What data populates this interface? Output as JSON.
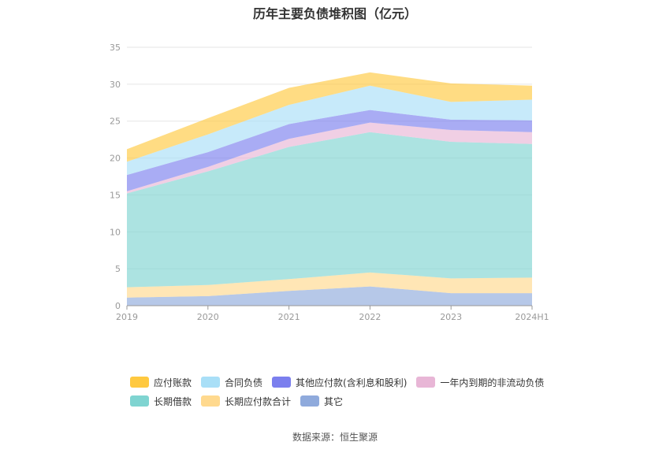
{
  "chart_data": {
    "type": "area",
    "stacked": true,
    "title": "历年主要负债堆积图（亿元）",
    "categories": [
      "2019",
      "2020",
      "2021",
      "2022",
      "2023",
      "2024H1"
    ],
    "ylim": [
      0,
      35
    ],
    "yticks": [
      "0",
      "5",
      "10",
      "15",
      "20",
      "25",
      "30",
      "35"
    ],
    "grid": true,
    "legend_position": "bottom",
    "series": [
      {
        "name": "其它",
        "color": "#8FAADC",
        "values": [
          1.1,
          1.3,
          2.0,
          2.6,
          1.7,
          1.7
        ]
      },
      {
        "name": "长期应付款合计",
        "color": "#FFD98E",
        "values": [
          1.4,
          1.5,
          1.6,
          1.9,
          2.0,
          2.1
        ]
      },
      {
        "name": "长期借款",
        "color": "#7FD4D1",
        "values": [
          12.7,
          15.4,
          17.9,
          19.0,
          18.5,
          18.1
        ]
      },
      {
        "name": "一年内到期的非流动负债",
        "color": "#E8B6D6",
        "values": [
          0.3,
          0.6,
          1.1,
          1.3,
          1.6,
          1.6
        ]
      },
      {
        "name": "其他应付款(含利息和股利)",
        "color": "#7B7FEE",
        "values": [
          2.2,
          2.0,
          2.0,
          1.7,
          1.4,
          1.6
        ]
      },
      {
        "name": "合同负债",
        "color": "#A9DFF7",
        "values": [
          1.8,
          2.4,
          2.6,
          3.3,
          2.4,
          2.8
        ]
      },
      {
        "name": "应付账款",
        "color": "#FFC940",
        "values": [
          1.7,
          2.2,
          2.3,
          1.8,
          2.5,
          1.9
        ]
      }
    ],
    "legend_rows": [
      [
        "应付账款",
        "合同负债",
        "其他应付款(含利息和股利)",
        "一年内到期的非流动负债"
      ],
      [
        "长期借款",
        "长期应付款合计",
        "其它"
      ]
    ]
  },
  "source": "数据来源：恒生聚源"
}
